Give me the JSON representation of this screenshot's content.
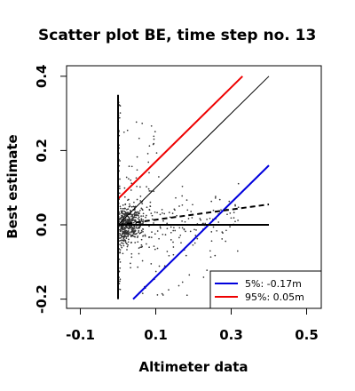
{
  "chart_data": {
    "type": "scatter",
    "title": "Scatter plot BE, time step no. 13",
    "xlabel": "Altimeter data",
    "ylabel": "Best estimate",
    "xlim": [
      -0.15,
      0.5
    ],
    "ylim": [
      -0.21,
      0.41
    ],
    "xticks": [
      -0.1,
      0.1,
      0.3,
      0.5
    ],
    "xtick_labels": [
      "-0.1",
      "0.1",
      "0.3",
      "0.5"
    ],
    "yticks": [
      -0.2,
      0.0,
      0.2,
      0.4
    ],
    "ytick_labels": [
      "-0.2",
      "0.0",
      "0.2",
      "0.4"
    ],
    "grid": false,
    "legend_position": "bottom-right",
    "point_color": "#333333",
    "points_note": "several hundred small grey points, densest near (0.0-0.1, -0.05-0.05)",
    "lines": [
      {
        "name": "5%: -0.17m",
        "color": "#0000dd",
        "x": [
          0.04,
          0.4
        ],
        "y": [
          -0.2,
          0.16
        ]
      },
      {
        "name": "95%:  0.05m",
        "color": "#ee0000",
        "x": [
          0.0,
          0.33
        ],
        "y": [
          0.07,
          0.4
        ]
      },
      {
        "name": "",
        "style": "identity",
        "color": "#000000",
        "x": [
          0.0,
          0.4
        ],
        "y": [
          0.0,
          0.4
        ]
      },
      {
        "name": "",
        "style": "dashed-regression",
        "color": "#000000",
        "x": [
          0.0,
          0.4
        ],
        "y": [
          0.0,
          0.055
        ]
      },
      {
        "name": "",
        "style": "vertical-zero",
        "color": "#000000",
        "x": [
          0.0,
          0.0
        ],
        "y": [
          -0.2,
          0.35
        ]
      },
      {
        "name": "",
        "style": "horizontal-zero",
        "color": "#000000",
        "x": [
          0.0,
          0.4
        ],
        "y": [
          0.0,
          0.0
        ]
      }
    ],
    "legend": [
      {
        "label": "5%: -0.17m",
        "color": "#0000dd"
      },
      {
        "label": "95%:  0.05m",
        "color": "#ee0000"
      }
    ]
  }
}
